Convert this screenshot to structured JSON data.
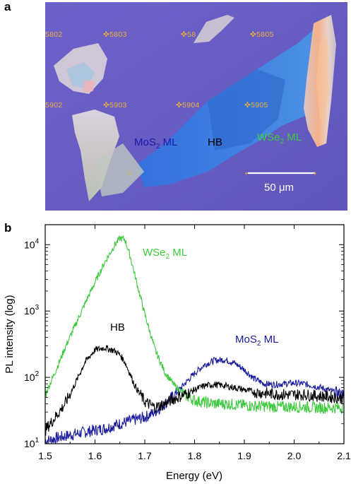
{
  "panel_a": {
    "letter": "a",
    "markers": [
      "5802",
      "5803",
      "58",
      "5805",
      "5902",
      "5903",
      "5904",
      "5905"
    ],
    "labels": {
      "mos2_main": "MoS",
      "mos2_sub": "2",
      "mos2_tail": " ML",
      "hb": "HB",
      "wse2_main": "WSe",
      "wse2_sub": "2",
      "wse2_tail": " ML"
    },
    "scale_bar": "50 μm",
    "colors": {
      "background": "#6a5fc4",
      "marker": "#f0b23c",
      "mos2_label": "#1a1aa8",
      "wse2_label": "#3ecf3e"
    }
  },
  "panel_b": {
    "letter": "b",
    "colors": {
      "wse2": "#3ec93e",
      "hb": "#000000",
      "mos2": "#1a1a9c"
    }
  },
  "chart_data": {
    "type": "line",
    "xlabel": "Energy (eV)",
    "ylabel": "PL intensity (log)",
    "xlim": [
      1.5,
      2.1
    ],
    "ylim": [
      10,
      20000
    ],
    "yscale": "log",
    "xticks": [
      "1.5",
      "1.6",
      "1.7",
      "1.8",
      "1.9",
      "2.0",
      "2.1"
    ],
    "yticks": [
      {
        "base": "10",
        "exp": "1",
        "value": 10
      },
      {
        "base": "10",
        "exp": "2",
        "value": 100
      },
      {
        "base": "10",
        "exp": "3",
        "value": 1000
      },
      {
        "base": "10",
        "exp": "4",
        "value": 10000
      }
    ],
    "x": [
      1.5,
      1.52,
      1.54,
      1.56,
      1.58,
      1.6,
      1.62,
      1.64,
      1.65,
      1.66,
      1.67,
      1.68,
      1.7,
      1.72,
      1.74,
      1.76,
      1.78,
      1.8,
      1.82,
      1.84,
      1.86,
      1.88,
      1.9,
      1.92,
      1.94,
      1.96,
      1.98,
      2.0,
      2.02,
      2.04,
      2.06,
      2.08,
      2.1
    ],
    "series": [
      {
        "key": "wse2",
        "label_main": "WSe",
        "label_sub": "2",
        "label_tail": " ML",
        "values": [
          55,
          120,
          280,
          600,
          1300,
          2700,
          5500,
          10000,
          12500,
          12000,
          7000,
          3500,
          900,
          270,
          120,
          75,
          55,
          45,
          42,
          40,
          40,
          39,
          38,
          37,
          37,
          36,
          36,
          36,
          36,
          35,
          35,
          35,
          35
        ]
      },
      {
        "key": "hb",
        "label_main": "HB",
        "label_sub": "",
        "label_tail": "",
        "values": [
          16,
          25,
          40,
          80,
          170,
          260,
          280,
          250,
          220,
          170,
          115,
          75,
          43,
          35,
          40,
          48,
          55,
          65,
          75,
          78,
          75,
          70,
          65,
          60,
          58,
          56,
          55,
          55,
          55,
          53,
          52,
          50,
          48
        ]
      },
      {
        "key": "mos2",
        "label_main": "MoS",
        "label_sub": "2",
        "label_tail": " ML",
        "values": [
          11,
          12,
          13,
          14,
          15,
          16,
          17,
          19,
          20,
          21,
          22,
          23,
          25,
          30,
          40,
          55,
          80,
          115,
          155,
          180,
          185,
          165,
          130,
          95,
          80,
          78,
          80,
          82,
          80,
          74,
          68,
          60,
          55
        ]
      }
    ]
  }
}
